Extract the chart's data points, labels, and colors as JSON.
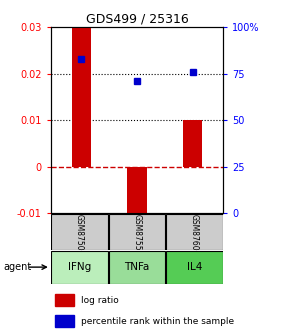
{
  "title": "GDS499 / 25316",
  "categories": [
    "IFNg",
    "TNFa",
    "IL4"
  ],
  "sample_labels": [
    "GSM8750",
    "GSM8755",
    "GSM8760"
  ],
  "log_ratios": [
    0.03,
    -0.012,
    0.01
  ],
  "bar_color": "#cc0000",
  "dot_color": "#0000cc",
  "ylim_left": [
    -0.01,
    0.03
  ],
  "ylim_right": [
    0,
    100
  ],
  "yticks_left": [
    -0.01,
    0,
    0.01,
    0.02,
    0.03
  ],
  "yticks_right": [
    0,
    25,
    50,
    75,
    100
  ],
  "agent_colors": [
    "#bbeebb",
    "#99dd99",
    "#55cc55"
  ],
  "sample_bg_color": "#cccccc",
  "bar_width": 0.35,
  "percentile_rank_values": [
    83,
    71,
    76
  ]
}
